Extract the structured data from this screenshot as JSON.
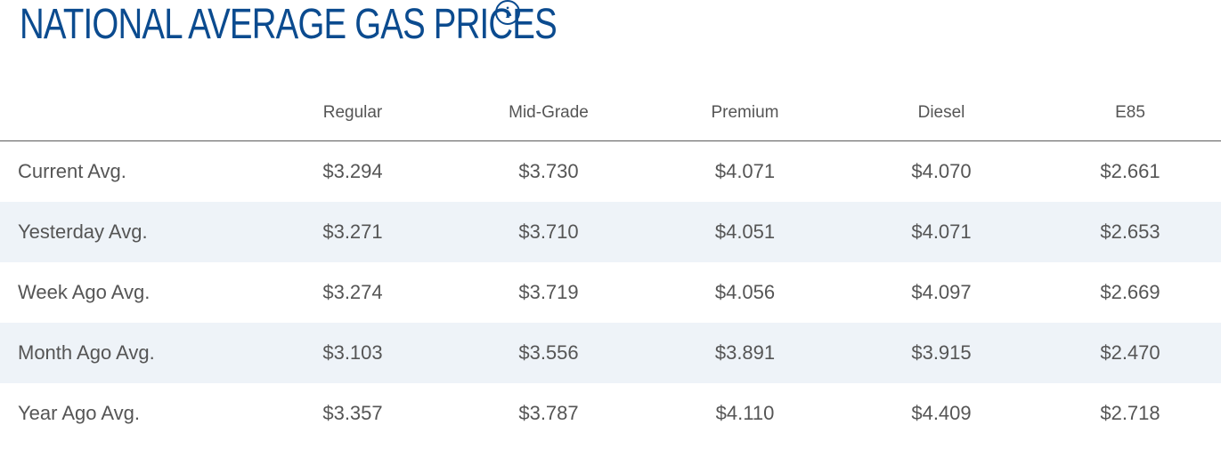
{
  "header": {
    "title": "NATIONAL AVERAGE GAS PRICES",
    "info_icon_glyph": "i",
    "info_icon_name": "info-icon",
    "title_color": "#0b4b8f"
  },
  "table": {
    "columns": [
      "",
      "Regular",
      "Mid-Grade",
      "Premium",
      "Diesel",
      "E85"
    ],
    "rows": [
      {
        "label": "Current Avg.",
        "values": [
          "$3.294",
          "$3.730",
          "$4.071",
          "$4.070",
          "$2.661"
        ]
      },
      {
        "label": "Yesterday Avg.",
        "values": [
          "$3.271",
          "$3.710",
          "$4.051",
          "$4.071",
          "$2.653"
        ]
      },
      {
        "label": "Week Ago Avg.",
        "values": [
          "$3.274",
          "$3.719",
          "$4.056",
          "$4.097",
          "$2.669"
        ]
      },
      {
        "label": "Month Ago Avg.",
        "values": [
          "$3.103",
          "$3.556",
          "$3.891",
          "$3.915",
          "$2.470"
        ]
      },
      {
        "label": "Year Ago Avg.",
        "values": [
          "$3.357",
          "$3.787",
          "$4.110",
          "$4.409",
          "$2.718"
        ]
      }
    ],
    "stripe_color": "#eef3f8"
  }
}
